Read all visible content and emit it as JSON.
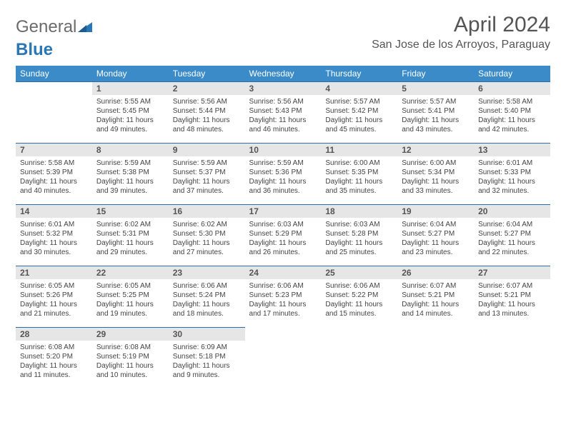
{
  "logo": {
    "part1": "General",
    "part2": "Blue"
  },
  "title": "April 2024",
  "location": "San Jose de los Arroyos, Paraguay",
  "colors": {
    "header_bg": "#3b8bc9",
    "header_text": "#ffffff",
    "daynum_bg": "#e6e6e6",
    "rule": "#2a6ea8",
    "logo_gray": "#6b6b6b",
    "logo_blue": "#2a77b8",
    "body_text": "#444444"
  },
  "day_headers": [
    "Sunday",
    "Monday",
    "Tuesday",
    "Wednesday",
    "Thursday",
    "Friday",
    "Saturday"
  ],
  "weeks": [
    [
      null,
      {
        "n": "1",
        "sunrise": "Sunrise: 5:55 AM",
        "sunset": "Sunset: 5:45 PM",
        "day": "Daylight: 11 hours and 49 minutes."
      },
      {
        "n": "2",
        "sunrise": "Sunrise: 5:56 AM",
        "sunset": "Sunset: 5:44 PM",
        "day": "Daylight: 11 hours and 48 minutes."
      },
      {
        "n": "3",
        "sunrise": "Sunrise: 5:56 AM",
        "sunset": "Sunset: 5:43 PM",
        "day": "Daylight: 11 hours and 46 minutes."
      },
      {
        "n": "4",
        "sunrise": "Sunrise: 5:57 AM",
        "sunset": "Sunset: 5:42 PM",
        "day": "Daylight: 11 hours and 45 minutes."
      },
      {
        "n": "5",
        "sunrise": "Sunrise: 5:57 AM",
        "sunset": "Sunset: 5:41 PM",
        "day": "Daylight: 11 hours and 43 minutes."
      },
      {
        "n": "6",
        "sunrise": "Sunrise: 5:58 AM",
        "sunset": "Sunset: 5:40 PM",
        "day": "Daylight: 11 hours and 42 minutes."
      }
    ],
    [
      {
        "n": "7",
        "sunrise": "Sunrise: 5:58 AM",
        "sunset": "Sunset: 5:39 PM",
        "day": "Daylight: 11 hours and 40 minutes."
      },
      {
        "n": "8",
        "sunrise": "Sunrise: 5:59 AM",
        "sunset": "Sunset: 5:38 PM",
        "day": "Daylight: 11 hours and 39 minutes."
      },
      {
        "n": "9",
        "sunrise": "Sunrise: 5:59 AM",
        "sunset": "Sunset: 5:37 PM",
        "day": "Daylight: 11 hours and 37 minutes."
      },
      {
        "n": "10",
        "sunrise": "Sunrise: 5:59 AM",
        "sunset": "Sunset: 5:36 PM",
        "day": "Daylight: 11 hours and 36 minutes."
      },
      {
        "n": "11",
        "sunrise": "Sunrise: 6:00 AM",
        "sunset": "Sunset: 5:35 PM",
        "day": "Daylight: 11 hours and 35 minutes."
      },
      {
        "n": "12",
        "sunrise": "Sunrise: 6:00 AM",
        "sunset": "Sunset: 5:34 PM",
        "day": "Daylight: 11 hours and 33 minutes."
      },
      {
        "n": "13",
        "sunrise": "Sunrise: 6:01 AM",
        "sunset": "Sunset: 5:33 PM",
        "day": "Daylight: 11 hours and 32 minutes."
      }
    ],
    [
      {
        "n": "14",
        "sunrise": "Sunrise: 6:01 AM",
        "sunset": "Sunset: 5:32 PM",
        "day": "Daylight: 11 hours and 30 minutes."
      },
      {
        "n": "15",
        "sunrise": "Sunrise: 6:02 AM",
        "sunset": "Sunset: 5:31 PM",
        "day": "Daylight: 11 hours and 29 minutes."
      },
      {
        "n": "16",
        "sunrise": "Sunrise: 6:02 AM",
        "sunset": "Sunset: 5:30 PM",
        "day": "Daylight: 11 hours and 27 minutes."
      },
      {
        "n": "17",
        "sunrise": "Sunrise: 6:03 AM",
        "sunset": "Sunset: 5:29 PM",
        "day": "Daylight: 11 hours and 26 minutes."
      },
      {
        "n": "18",
        "sunrise": "Sunrise: 6:03 AM",
        "sunset": "Sunset: 5:28 PM",
        "day": "Daylight: 11 hours and 25 minutes."
      },
      {
        "n": "19",
        "sunrise": "Sunrise: 6:04 AM",
        "sunset": "Sunset: 5:27 PM",
        "day": "Daylight: 11 hours and 23 minutes."
      },
      {
        "n": "20",
        "sunrise": "Sunrise: 6:04 AM",
        "sunset": "Sunset: 5:27 PM",
        "day": "Daylight: 11 hours and 22 minutes."
      }
    ],
    [
      {
        "n": "21",
        "sunrise": "Sunrise: 6:05 AM",
        "sunset": "Sunset: 5:26 PM",
        "day": "Daylight: 11 hours and 21 minutes."
      },
      {
        "n": "22",
        "sunrise": "Sunrise: 6:05 AM",
        "sunset": "Sunset: 5:25 PM",
        "day": "Daylight: 11 hours and 19 minutes."
      },
      {
        "n": "23",
        "sunrise": "Sunrise: 6:06 AM",
        "sunset": "Sunset: 5:24 PM",
        "day": "Daylight: 11 hours and 18 minutes."
      },
      {
        "n": "24",
        "sunrise": "Sunrise: 6:06 AM",
        "sunset": "Sunset: 5:23 PM",
        "day": "Daylight: 11 hours and 17 minutes."
      },
      {
        "n": "25",
        "sunrise": "Sunrise: 6:06 AM",
        "sunset": "Sunset: 5:22 PM",
        "day": "Daylight: 11 hours and 15 minutes."
      },
      {
        "n": "26",
        "sunrise": "Sunrise: 6:07 AM",
        "sunset": "Sunset: 5:21 PM",
        "day": "Daylight: 11 hours and 14 minutes."
      },
      {
        "n": "27",
        "sunrise": "Sunrise: 6:07 AM",
        "sunset": "Sunset: 5:21 PM",
        "day": "Daylight: 11 hours and 13 minutes."
      }
    ],
    [
      {
        "n": "28",
        "sunrise": "Sunrise: 6:08 AM",
        "sunset": "Sunset: 5:20 PM",
        "day": "Daylight: 11 hours and 11 minutes."
      },
      {
        "n": "29",
        "sunrise": "Sunrise: 6:08 AM",
        "sunset": "Sunset: 5:19 PM",
        "day": "Daylight: 11 hours and 10 minutes."
      },
      {
        "n": "30",
        "sunrise": "Sunrise: 6:09 AM",
        "sunset": "Sunset: 5:18 PM",
        "day": "Daylight: 11 hours and 9 minutes."
      },
      null,
      null,
      null,
      null
    ]
  ]
}
